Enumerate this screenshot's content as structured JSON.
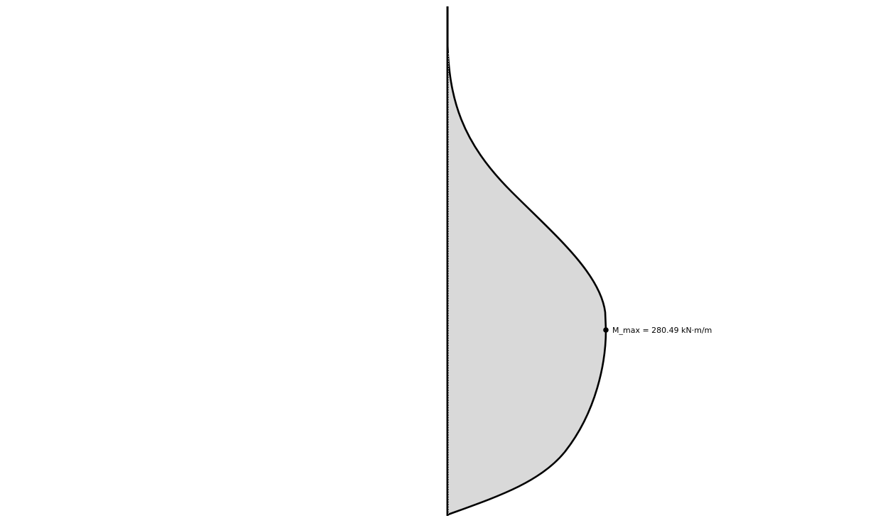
{
  "diagram": {
    "annotation": {
      "max_moment_label": "M_max = 280.49 kN·m/m"
    },
    "colors": {
      "fill": "#d9d9d9",
      "outline": "#000000",
      "wall": "#000000",
      "background": "#ffffff"
    }
  }
}
